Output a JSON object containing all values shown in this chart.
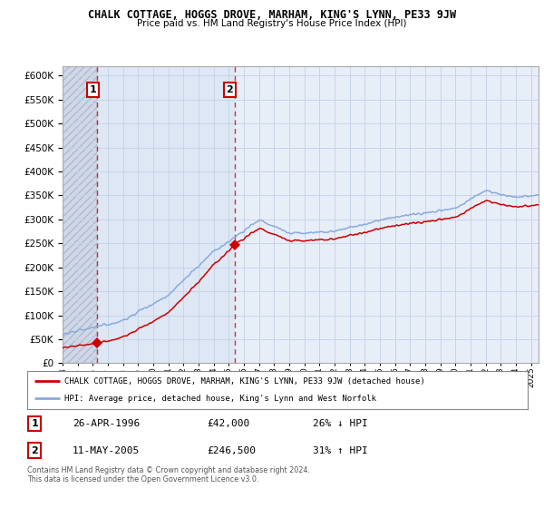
{
  "title": "CHALK COTTAGE, HOGGS DROVE, MARHAM, KING'S LYNN, PE33 9JW",
  "subtitle": "Price paid vs. HM Land Registry's House Price Index (HPI)",
  "legend_line1": "CHALK COTTAGE, HOGGS DROVE, MARHAM, KING'S LYNN, PE33 9JW (detached house)",
  "legend_line2": "HPI: Average price, detached house, King's Lynn and West Norfolk",
  "transaction1_date": "26-APR-1996",
  "transaction1_price": 42000,
  "transaction1_year": 1996.3,
  "transaction2_date": "11-MAY-2005",
  "transaction2_price": 246500,
  "transaction2_year": 2005.37,
  "transaction1_hpi_pct": "26% ↓ HPI",
  "transaction2_hpi_pct": "31% ↑ HPI",
  "footnote": "Contains HM Land Registry data © Crown copyright and database right 2024.\nThis data is licensed under the Open Government Licence v3.0.",
  "ylim_min": 0,
  "ylim_max": 620000,
  "xmin": 1994.0,
  "xmax": 2025.5,
  "grid_color": "#c8d4e8",
  "transaction_color": "#cc0000",
  "hpi_color": "#88aadd",
  "plot_bg": "#e8eef8",
  "hatch_bg": "#d0d8e8"
}
